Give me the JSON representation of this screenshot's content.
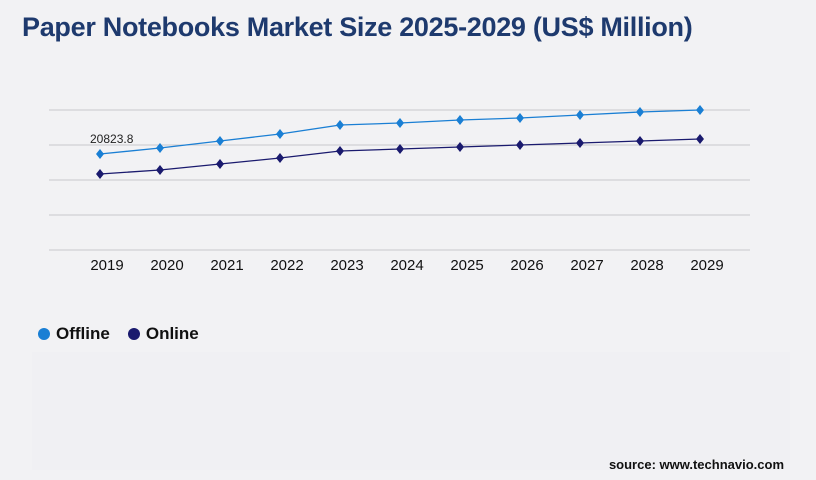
{
  "chart_data": {
    "type": "line",
    "title": "Paper Notebooks Market Size 2025-2029 (US$ Million)",
    "x": [
      "2019",
      "2020",
      "2021",
      "2022",
      "2023",
      "2024",
      "2025",
      "2026",
      "2027",
      "2028",
      "2029"
    ],
    "series": [
      {
        "name": "Offline",
        "color": "#1a7fd4",
        "values": [
          20823.8,
          22125,
          23644,
          25162,
          27114,
          27548,
          28198,
          28632,
          29283,
          29934,
          30368
        ]
      },
      {
        "name": "Online",
        "color": "#1a1a6e",
        "values": [
          16486,
          17353,
          18655,
          19956,
          21474,
          21909,
          22342,
          22776,
          23210,
          23644,
          24077
        ]
      }
    ],
    "data_labels": [
      {
        "series": "Offline",
        "x": "2019",
        "text": "20823.8"
      }
    ],
    "ylim": [
      0,
      30368
    ],
    "grid": true,
    "legend": "bottom-left",
    "marker": "diamond"
  },
  "source": "source: www.technavio.com"
}
